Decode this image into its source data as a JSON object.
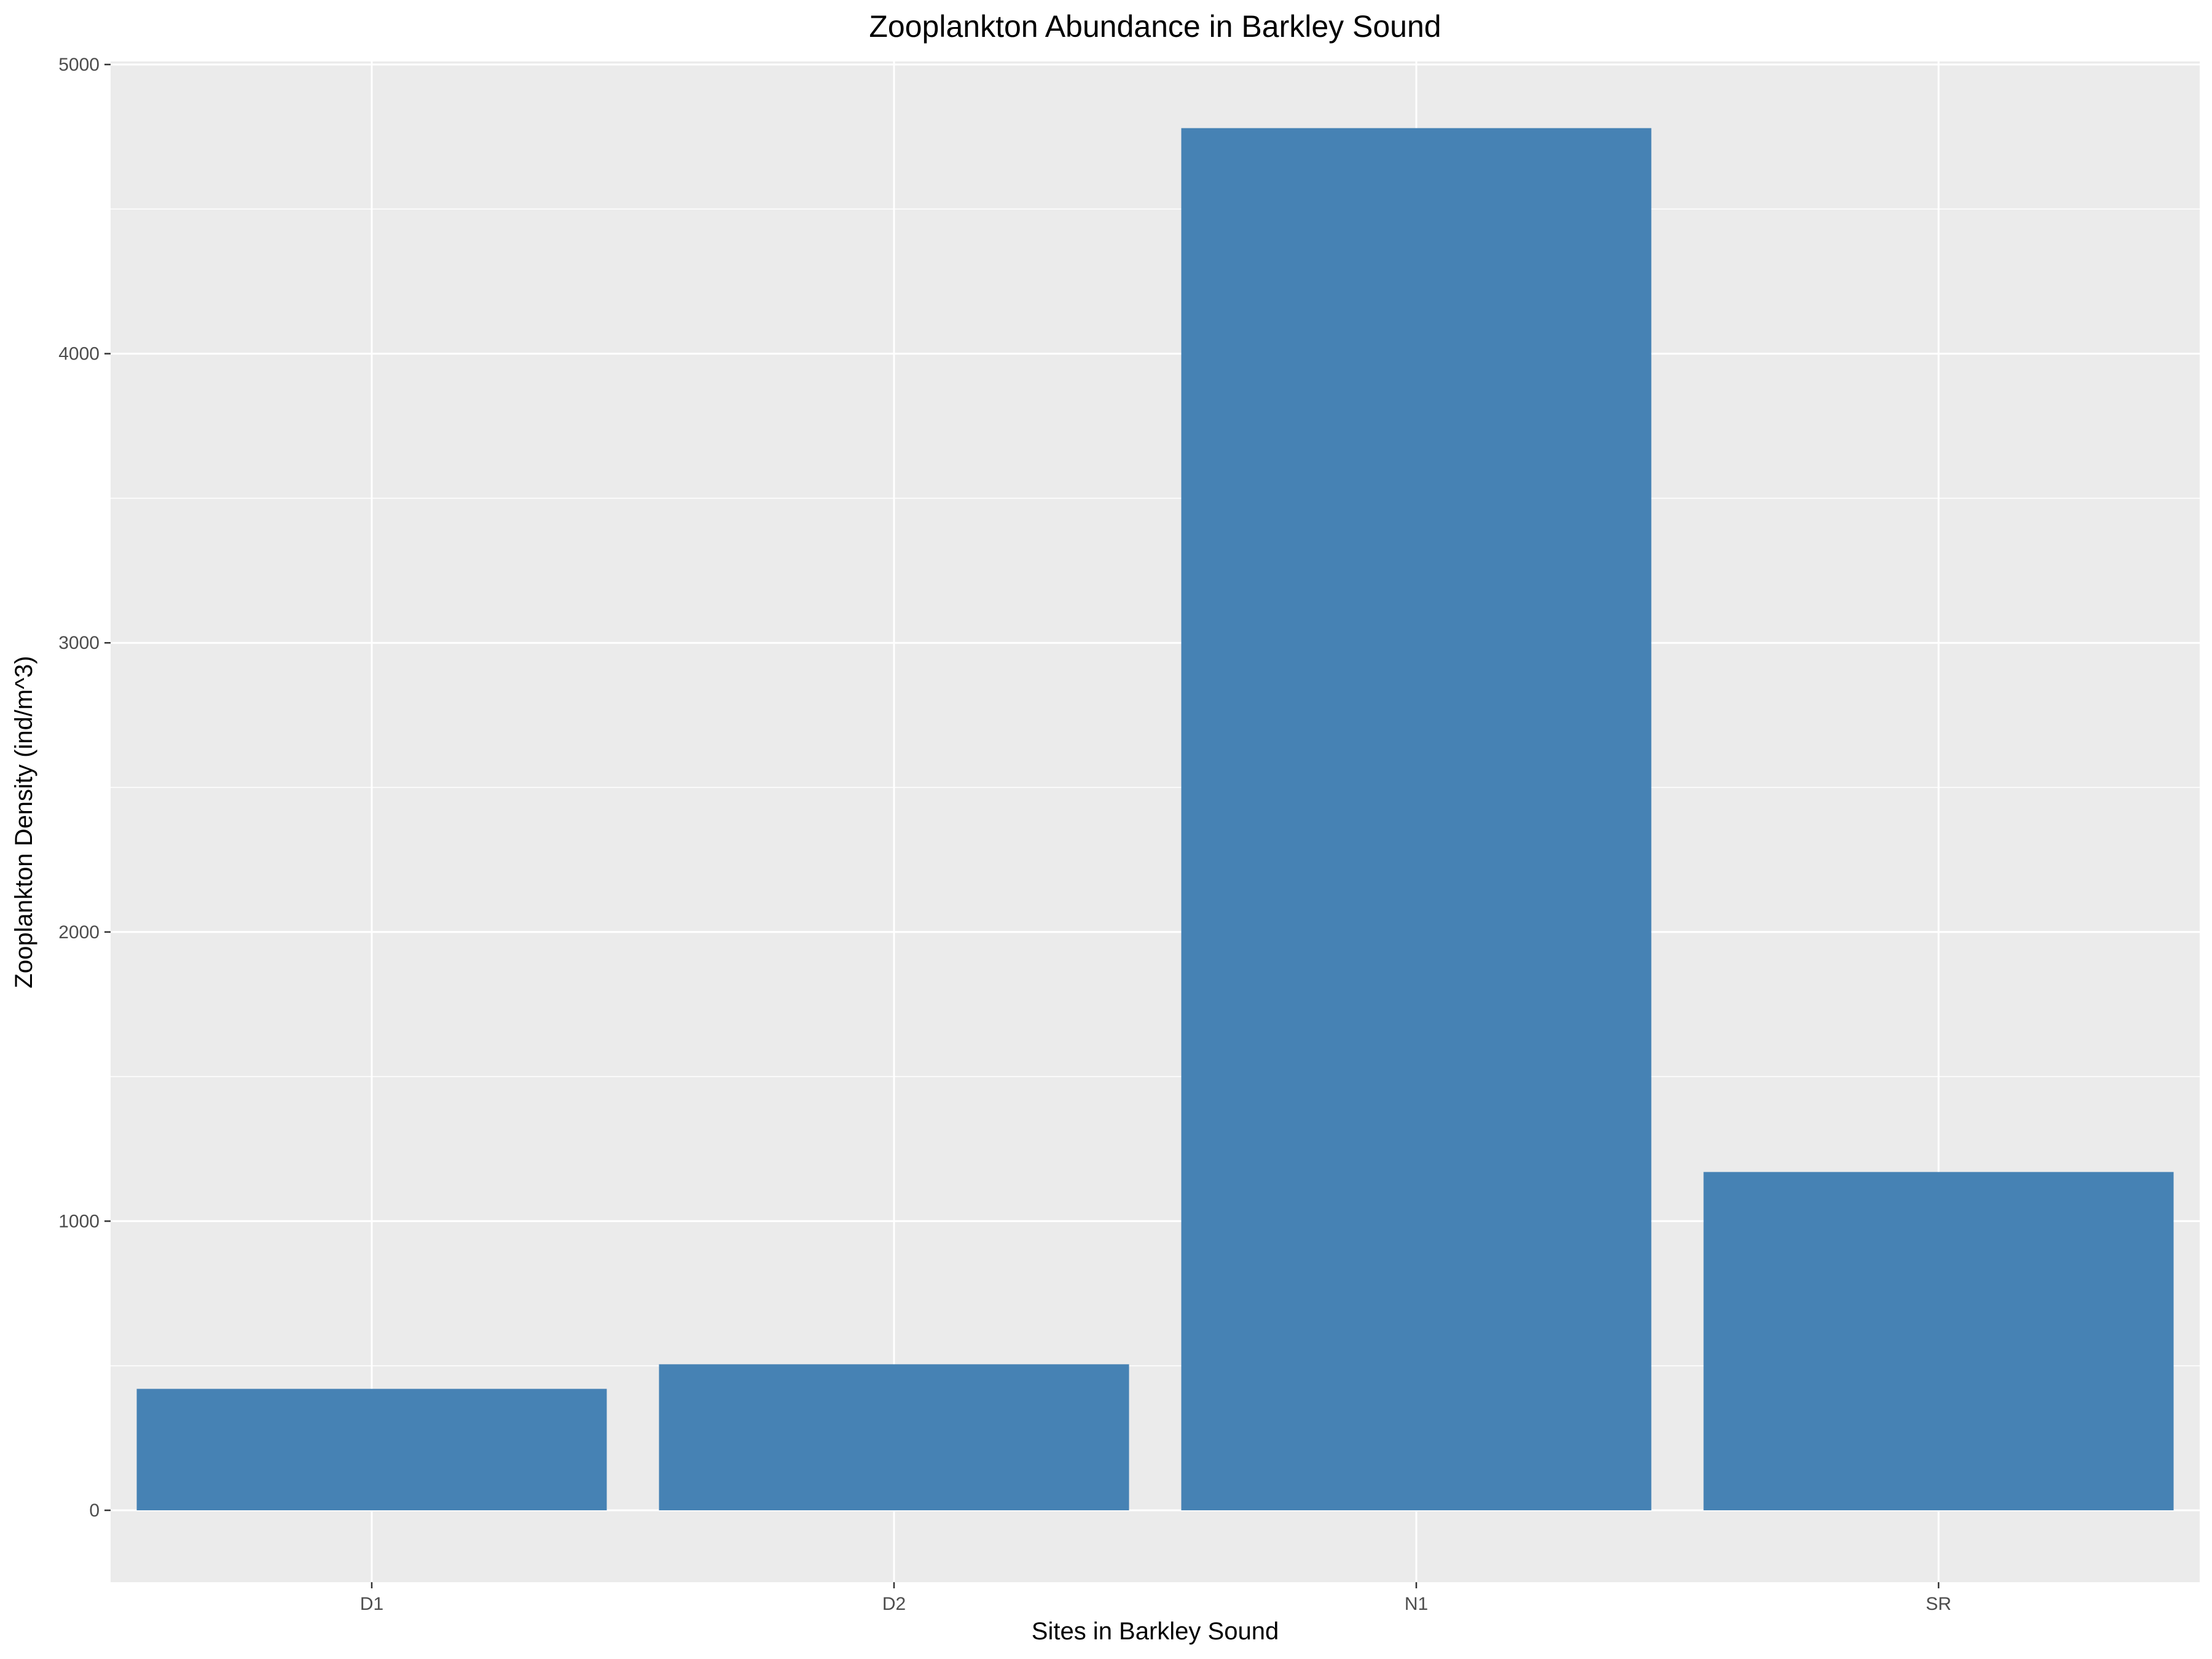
{
  "chart_data": {
    "type": "bar",
    "title": "Zooplankton Abundance in Barkley Sound",
    "xlabel": "Sites in Barkley Sound",
    "ylabel": "Zooplankton Density (ind/m^3)",
    "categories": [
      "D1",
      "D2",
      "N1",
      "SR"
    ],
    "values": [
      420,
      505,
      4780,
      1170
    ],
    "ylim": [
      -250,
      5000
    ],
    "yticks": [
      0,
      1000,
      2000,
      3000,
      4000,
      5000
    ],
    "grid": true,
    "legend": "none",
    "colors": {
      "bar": "#4682B4",
      "panel": "#EBEBEB",
      "grid": "#FFFFFF",
      "tick_mark": "#333333"
    }
  }
}
